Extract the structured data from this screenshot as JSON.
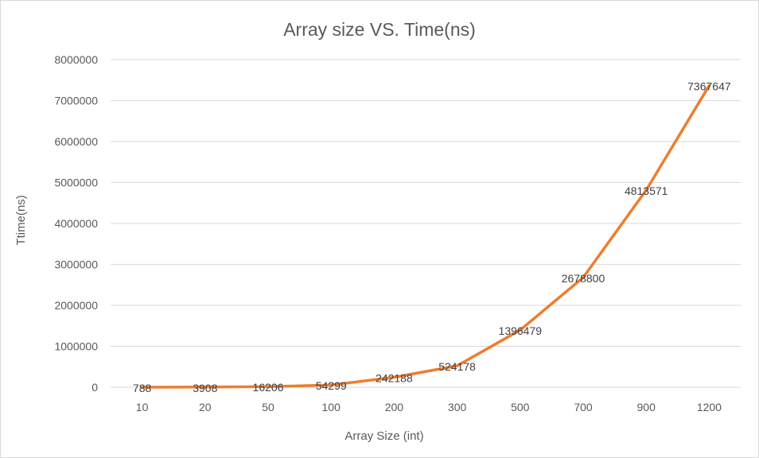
{
  "chart_data": {
    "type": "line",
    "title": "Array size VS. Time(ns)",
    "xlabel": "Array Size (int)",
    "ylabel": "Ttime(ns)",
    "categories": [
      "10",
      "20",
      "50",
      "100",
      "200",
      "300",
      "500",
      "700",
      "900",
      "1200"
    ],
    "series": [
      {
        "values": [
          788,
          3908,
          16206,
          54299,
          242188,
          524178,
          1396479,
          2678800,
          4813571,
          7367647
        ],
        "labels": [
          "788",
          "3908",
          "16206",
          "54299",
          "242188",
          "524178",
          "1396479",
          "2678800",
          "4813571",
          "7367647"
        ],
        "color": "#ED7D31"
      }
    ],
    "ylim": [
      0,
      8000000
    ],
    "yticks": [
      "0",
      "1000000",
      "2000000",
      "3000000",
      "4000000",
      "5000000",
      "6000000",
      "7000000",
      "8000000"
    ],
    "grid": true,
    "legend": "none"
  }
}
